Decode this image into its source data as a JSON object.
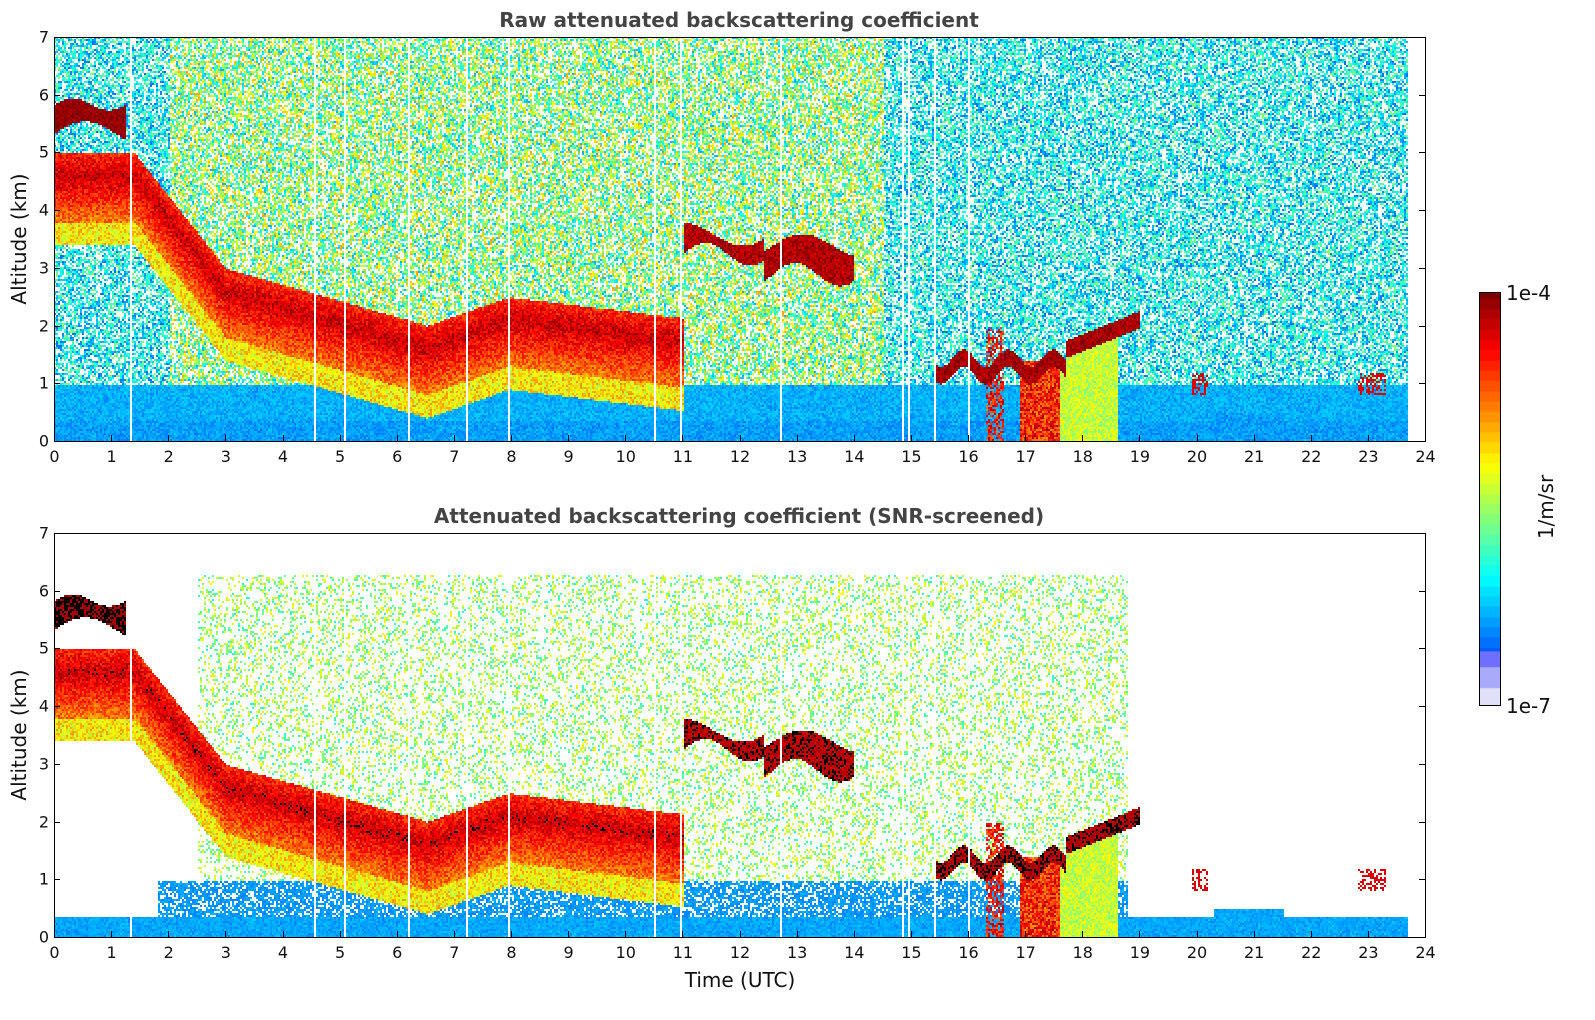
{
  "chart_data": [
    {
      "type": "heatmap",
      "title": "Raw attenuated backscattering coefficient",
      "xlabel": "",
      "ylabel": "Altitude (km)",
      "xlim": [
        0,
        24
      ],
      "ylim": [
        0,
        7
      ],
      "xticks": [
        "0",
        "1",
        "2",
        "3",
        "4",
        "5",
        "6",
        "7",
        "8",
        "9",
        "10",
        "11",
        "12",
        "13",
        "14",
        "15",
        "16",
        "17",
        "18",
        "19",
        "20",
        "21",
        "22",
        "23",
        "24"
      ],
      "yticks": [
        "0",
        "1",
        "2",
        "3",
        "4",
        "5",
        "6",
        "7"
      ],
      "data_end_time": 23.7,
      "features": [
        {
          "name": "high cloud",
          "time": [
            0,
            1.2
          ],
          "altitude_km": [
            5.5,
            5.9
          ]
        },
        {
          "name": "descending aerosol/cloud layer",
          "time": [
            1.3,
            11.0
          ],
          "altitude_km": [
            1.5,
            5.5
          ]
        },
        {
          "name": "mid-level cloud",
          "time": [
            11.0,
            14.0
          ],
          "altitude_km": [
            3.0,
            3.7
          ]
        },
        {
          "name": "low cloud and precipitation",
          "time": [
            15.4,
            19.0
          ],
          "altitude_km": [
            0,
            2.2
          ]
        },
        {
          "name": "boundary layer",
          "time": [
            0,
            23.7
          ],
          "altitude_km": [
            0,
            1.0
          ]
        }
      ]
    },
    {
      "type": "heatmap",
      "title": "Attenuated backscattering coefficient (SNR-screened)",
      "xlabel": "Time (UTC)",
      "ylabel": "Altitude (km)",
      "xlim": [
        0,
        24
      ],
      "ylim": [
        0,
        7
      ],
      "xticks": [
        "0",
        "1",
        "2",
        "3",
        "4",
        "5",
        "6",
        "7",
        "8",
        "9",
        "10",
        "11",
        "12",
        "13",
        "14",
        "15",
        "16",
        "17",
        "18",
        "19",
        "20",
        "21",
        "22",
        "23",
        "24"
      ],
      "yticks": [
        "0",
        "1",
        "2",
        "3",
        "4",
        "5",
        "6",
        "7"
      ],
      "data_end_time": 23.7,
      "features": [
        {
          "name": "high cloud (screened)",
          "time": [
            0,
            1.2
          ],
          "altitude_km": [
            5.5,
            5.9
          ]
        },
        {
          "name": "descending aerosol/cloud layer",
          "time": [
            2.5,
            11.0
          ],
          "altitude_km": [
            1.5,
            4.0
          ]
        },
        {
          "name": "mid-level cloud",
          "time": [
            11.0,
            14.0
          ],
          "altitude_km": [
            3.0,
            3.7
          ]
        },
        {
          "name": "low cloud and precipitation",
          "time": [
            15.4,
            19.0
          ],
          "altitude_km": [
            0,
            2.2
          ]
        },
        {
          "name": "boundary layer",
          "time": [
            0,
            23.7
          ],
          "altitude_km": [
            0,
            0.4
          ]
        }
      ]
    }
  ],
  "colorbar": {
    "label": "1/m/sr",
    "min_label": "1e-7",
    "max_label": "1e-4",
    "scale": "log",
    "colormap": "jet"
  },
  "colors": {
    "title": "#444444",
    "axis": "#000000"
  }
}
